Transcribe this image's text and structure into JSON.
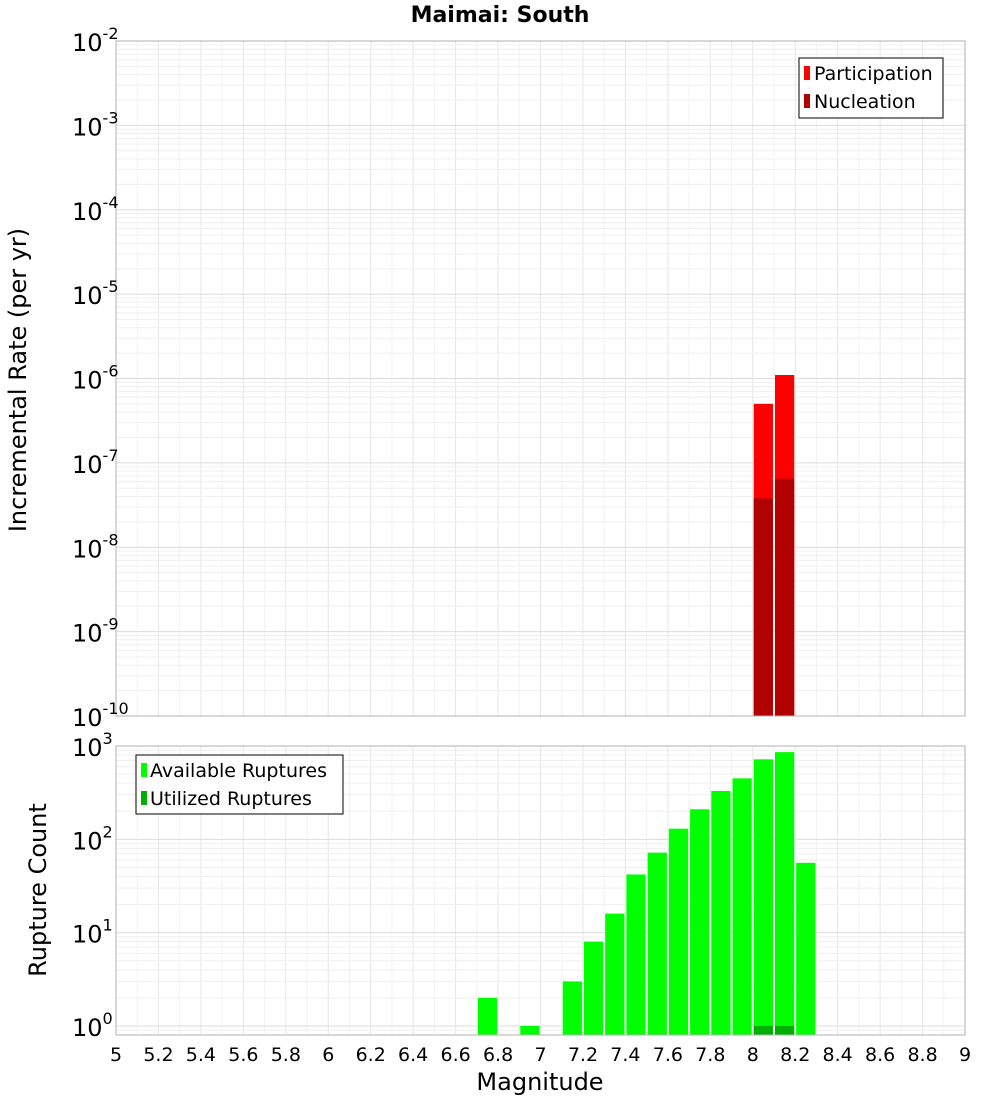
{
  "chart_data": [
    {
      "type": "bar",
      "title": "Maimai: South",
      "ylabel": "Incremental Rate (per yr)",
      "xlabel": "",
      "yscale": "log",
      "ylim": [
        1e-10,
        0.01
      ],
      "xlim": [
        5,
        9
      ],
      "ytick_exponents": [
        -2,
        -3,
        -4,
        -5,
        -6,
        -7,
        -8,
        -9,
        -10
      ],
      "bar_width": 0.1,
      "legend_position": "top-right",
      "series": [
        {
          "name": "Participation",
          "color": "#ff0000",
          "x": [
            8.05,
            8.15
          ],
          "values": [
            5e-07,
            1.1e-06
          ]
        },
        {
          "name": "Nucleation",
          "color": "#b00000",
          "x": [
            8.05,
            8.15
          ],
          "values": [
            3.8e-08,
            6.5e-08
          ]
        }
      ]
    },
    {
      "type": "bar",
      "title": "",
      "ylabel": "Rupture Count",
      "xlabel": "Magnitude",
      "yscale": "log",
      "ylim": [
        0.8,
        1000
      ],
      "xlim": [
        5,
        9
      ],
      "ytick_exponents": [
        3,
        2,
        1,
        0
      ],
      "bar_width": 0.1,
      "legend_position": "top-left",
      "series": [
        {
          "name": "Available Ruptures",
          "color": "#00ff00",
          "x": [
            6.75,
            6.95,
            7.15,
            7.25,
            7.35,
            7.45,
            7.55,
            7.65,
            7.75,
            7.85,
            7.95,
            8.05,
            8.15,
            8.25
          ],
          "values": [
            2,
            1,
            3,
            8,
            16,
            42,
            72,
            130,
            210,
            330,
            450,
            720,
            860,
            56
          ]
        },
        {
          "name": "Utilized Ruptures",
          "color": "#00b000",
          "x": [
            8.05,
            8.15
          ],
          "values": [
            1,
            1
          ]
        }
      ]
    }
  ],
  "x_ticks": [
    "5",
    "5.2",
    "5.4",
    "5.6",
    "5.8",
    "6",
    "6.2",
    "6.4",
    "6.6",
    "6.8",
    "7",
    "7.2",
    "7.4",
    "7.6",
    "7.8",
    "8",
    "8.2",
    "8.4",
    "8.6",
    "8.8",
    "9"
  ],
  "y_tick_base": "10"
}
